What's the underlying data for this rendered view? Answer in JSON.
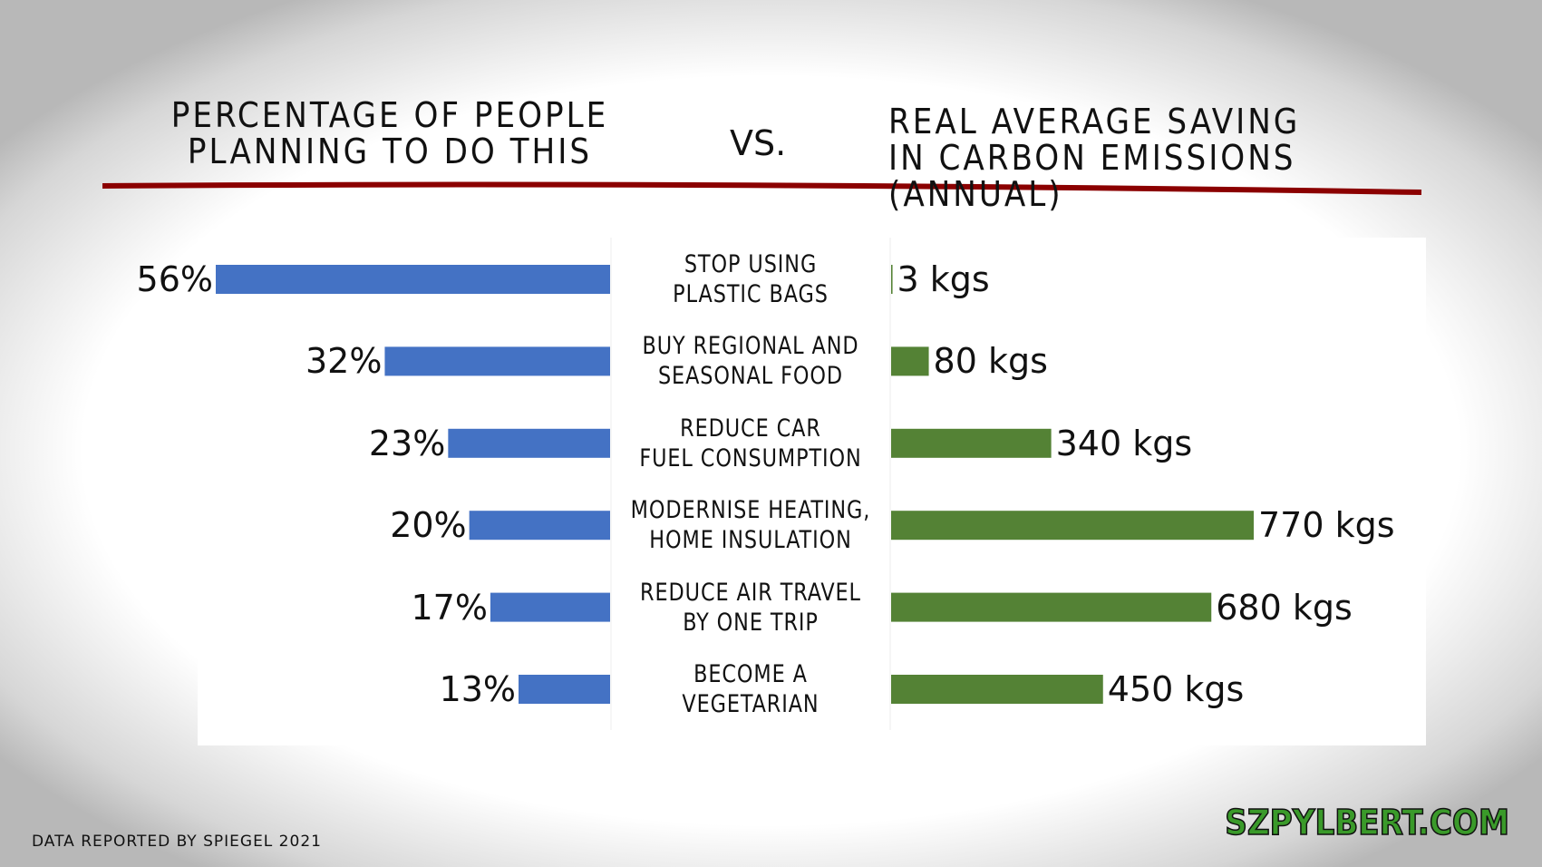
{
  "chart_data": {
    "type": "diverging-bar",
    "vs_label": "VS.",
    "categories": [
      "STOP USING\nPLASTIC BAGS",
      "BUY REGIONAL AND\nSEASONAL FOOD",
      "REDUCE CAR\nFUEL CONSUMPTION",
      "MODERNISE HEATING,\nHOME INSULATION",
      "REDUCE AIR TRAVEL\nBY ONE TRIP",
      "BECOME A\nVEGETARIAN"
    ],
    "series": [
      {
        "name": "PERCENTAGE OF PEOPLE\nPLANNING TO DO THIS",
        "color": "#4472c4",
        "values": [
          56,
          32,
          23,
          20,
          17,
          13
        ],
        "value_labels": [
          "56%",
          "32%",
          "23%",
          "20%",
          "17%",
          "13%"
        ]
      },
      {
        "name": "REAL AVERAGE SAVING\n  IN CARBON EMISSIONS (ANNUAL)",
        "color": "#548235",
        "values": [
          3,
          80,
          340,
          770,
          680,
          450
        ],
        "value_labels": [
          "3 kgs",
          "80 kgs",
          "340 kgs",
          "770 kgs",
          "680 kgs",
          "450 kgs"
        ]
      }
    ],
    "source": "DATA REPORTED BY SPIEGEL 2021",
    "brand": "SZPYLBERT.COM"
  }
}
